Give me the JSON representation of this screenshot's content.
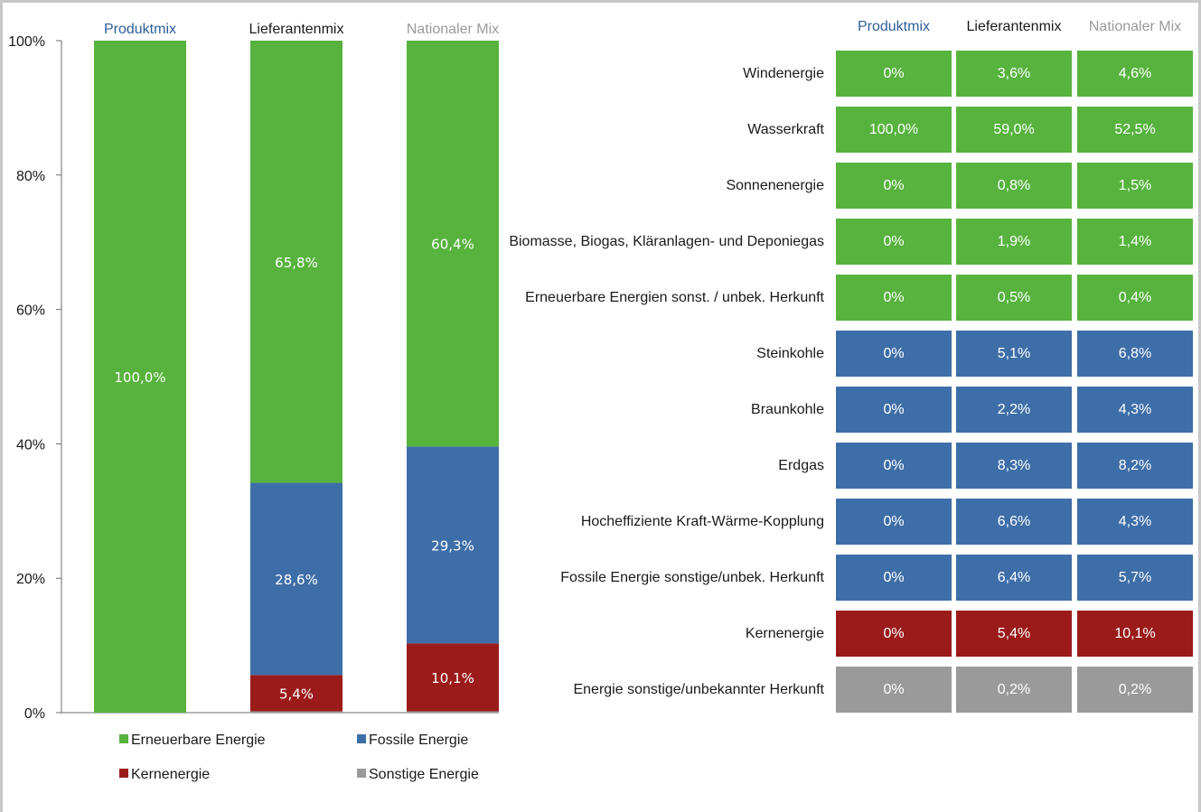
{
  "chart_data": [
    {
      "type": "bar",
      "stacked": true,
      "categories": [
        "Produktmix",
        "Lieferantenmix",
        "Nationaler Mix"
      ],
      "category_colors": [
        "#2e5e98",
        "#1a1a1a",
        "#9a9a9a"
      ],
      "yticks": [
        "0%",
        "20%",
        "40%",
        "60%",
        "80%",
        "100%"
      ],
      "ylim": [
        0,
        100
      ],
      "series": [
        {
          "name": "Sonstige Energie",
          "color": "#9a9a9a",
          "values": [
            0,
            0.2,
            0.2
          ],
          "labels": [
            "",
            "",
            ""
          ]
        },
        {
          "name": "Kernenergie",
          "color": "#9b1b1b",
          "values": [
            0,
            5.4,
            10.1
          ],
          "labels": [
            "",
            "5,4%",
            "10,1%"
          ]
        },
        {
          "name": "Fossile Energie",
          "color": "#3e6ea8",
          "values": [
            0,
            28.6,
            29.3
          ],
          "labels": [
            "",
            "28,6%",
            "29,3%"
          ]
        },
        {
          "name": "Erneuerbare Energie",
          "color": "#57b33e",
          "values": [
            100,
            65.8,
            60.4
          ],
          "labels": [
            "100,0%",
            "65,8%",
            "60,4%"
          ]
        }
      ],
      "legend": {
        "placement": "bottom",
        "items": [
          {
            "name": "Erneuerbare Energie",
            "color": "#57b33e"
          },
          {
            "name": "Fossile Energie",
            "color": "#3e6ea8"
          },
          {
            "name": "Kernenergie",
            "color": "#9b1b1b"
          },
          {
            "name": "Sonstige Energie",
            "color": "#9a9a9a"
          }
        ]
      }
    },
    {
      "type": "table",
      "columns": [
        "Produktmix",
        "Lieferantenmix",
        "Nationaler Mix"
      ],
      "column_colors": [
        "#2e5e98",
        "#1a1a1a",
        "#9a9a9a"
      ],
      "rows": [
        {
          "label": "Windenergie",
          "group": "erneuerbar",
          "values": [
            "0%",
            "3,6%",
            "4,6%"
          ]
        },
        {
          "label": "Wasserkraft",
          "group": "erneuerbar",
          "values": [
            "100,0%",
            "59,0%",
            "52,5%"
          ]
        },
        {
          "label": "Sonnenenergie",
          "group": "erneuerbar",
          "values": [
            "0%",
            "0,8%",
            "1,5%"
          ]
        },
        {
          "label": "Biomasse, Biogas, Kläranlagen- und Deponiegas",
          "group": "erneuerbar",
          "values": [
            "0%",
            "1,9%",
            "1,4%"
          ]
        },
        {
          "label": "Erneuerbare Energien sonst. / unbek. Herkunft",
          "group": "erneuerbar",
          "values": [
            "0%",
            "0,5%",
            "0,4%"
          ]
        },
        {
          "label": "Steinkohle",
          "group": "fossil",
          "values": [
            "0%",
            "5,1%",
            "6,8%"
          ]
        },
        {
          "label": "Braunkohle",
          "group": "fossil",
          "values": [
            "0%",
            "2,2%",
            "4,3%"
          ]
        },
        {
          "label": "Erdgas",
          "group": "fossil",
          "values": [
            "0%",
            "8,3%",
            "8,2%"
          ]
        },
        {
          "label": "Hocheffiziente Kraft-Wärme-Kopplung",
          "group": "fossil",
          "values": [
            "0%",
            "6,6%",
            "4,3%"
          ]
        },
        {
          "label": "Fossile Energie sonstige/unbek. Herkunft",
          "group": "fossil",
          "values": [
            "0%",
            "6,4%",
            "5,7%"
          ]
        },
        {
          "label": "Kernenergie",
          "group": "kern",
          "values": [
            "0%",
            "5,4%",
            "10,1%"
          ]
        },
        {
          "label": "Energie sonstige/unbekannter Herkunft",
          "group": "sonstige",
          "values": [
            "0%",
            "0,2%",
            "0,2%"
          ]
        }
      ],
      "group_colors": {
        "erneuerbar": "#57b33e",
        "fossil": "#3e6ea8",
        "kern": "#9b1b1b",
        "sonstige": "#9a9a9a"
      }
    }
  ]
}
